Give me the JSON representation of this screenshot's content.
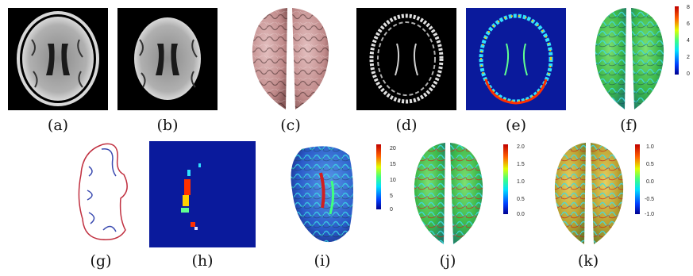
{
  "figure": {
    "panels": [
      {
        "id": "a",
        "caption": "(a)"
      },
      {
        "id": "b",
        "caption": "(b)"
      },
      {
        "id": "c",
        "caption": "(c)"
      },
      {
        "id": "d",
        "caption": "(d)"
      },
      {
        "id": "e",
        "caption": "(e)"
      },
      {
        "id": "f",
        "caption": "(f)"
      },
      {
        "id": "g",
        "caption": "(g)"
      },
      {
        "id": "h",
        "caption": "(h)"
      },
      {
        "id": "i",
        "caption": "(i)"
      },
      {
        "id": "j",
        "caption": "(j)"
      },
      {
        "id": "k",
        "caption": "(k)"
      }
    ],
    "colorbars": {
      "f": {
        "ticks": [
          "8",
          "6",
          "4",
          "2",
          "0"
        ]
      },
      "i": {
        "ticks": [
          "20",
          "15",
          "10",
          "5",
          "0"
        ]
      },
      "j": {
        "ticks": [
          "2.0",
          "1.5",
          "1.0",
          "0.5",
          "0.0"
        ]
      },
      "k": {
        "ticks": [
          "1.0",
          "0.5",
          "0.0",
          "-0.5",
          "-1.0"
        ]
      }
    },
    "colors": {
      "background": "#000000",
      "field": "#0a1a9c",
      "cortex": "#c99a9a",
      "contour_a": "#3a4ab0",
      "contour_b": "#c03040"
    }
  }
}
